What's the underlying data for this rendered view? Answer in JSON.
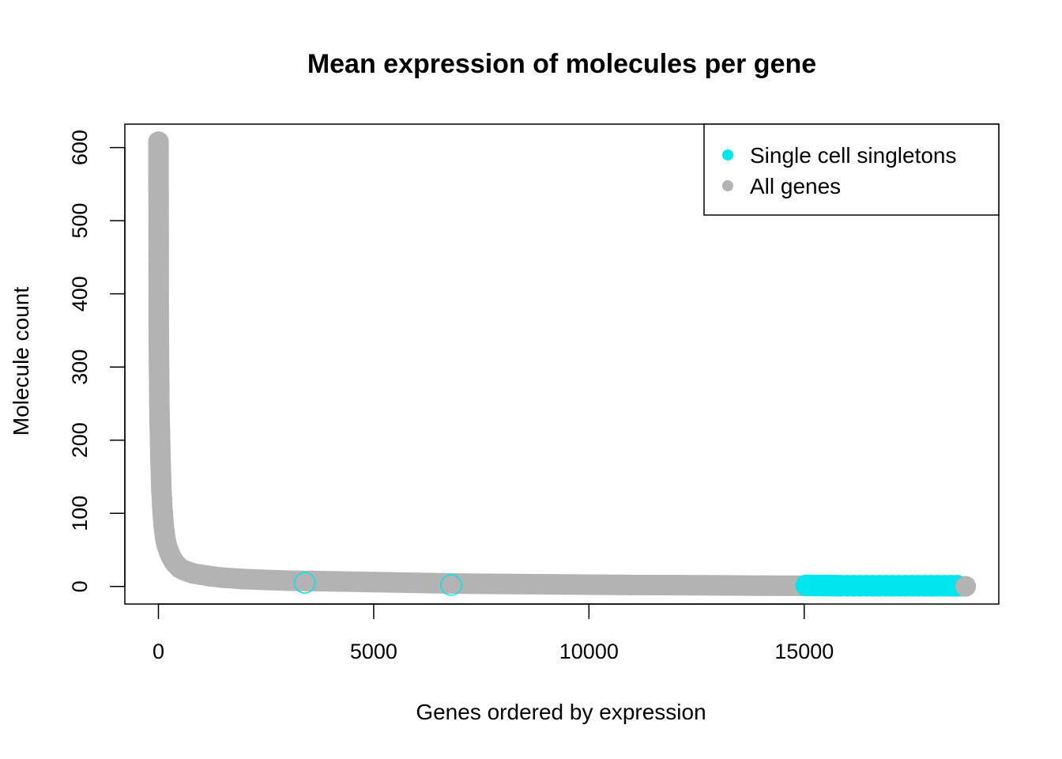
{
  "chart_data": {
    "type": "scatter",
    "title": "Mean expression of molecules per gene",
    "xlabel": "Genes ordered by expression",
    "ylabel": "Molecule count",
    "xlim": [
      -780,
      19520
    ],
    "ylim": [
      -24,
      632
    ],
    "xticks": [
      0,
      5000,
      10000,
      15000
    ],
    "yticks": [
      0,
      100,
      200,
      300,
      400,
      500,
      600
    ],
    "grid": false,
    "legend_position": "top-right",
    "legend": [
      {
        "label": "Single cell singletons",
        "color": "#00E5EE"
      },
      {
        "label": "All genes",
        "color": "#B3B3B3"
      }
    ],
    "series": [
      {
        "name": "All genes",
        "color": "#B3B3B3",
        "marker": "filled-circle",
        "x": [
          1,
          2,
          3,
          5,
          8,
          10,
          12,
          15,
          18,
          20,
          25,
          30,
          35,
          40,
          45,
          50,
          60,
          70,
          80,
          90,
          100,
          120,
          140,
          160,
          180,
          200,
          250,
          300,
          350,
          400,
          450,
          500,
          600,
          700,
          800,
          900,
          1000,
          1200,
          1500,
          2000,
          2500,
          3000,
          3500,
          4000,
          5000,
          6000,
          7000,
          8000,
          9000,
          10000,
          11000,
          12000,
          13000,
          14000,
          15000,
          16000,
          17000,
          18000,
          18750
        ],
        "y": [
          608,
          553,
          540,
          441,
          355,
          345,
          310,
          296,
          275,
          250,
          235,
          222,
          210,
          195,
          180,
          170,
          150,
          130,
          120,
          108,
          100,
          85,
          75,
          66,
          60,
          55,
          47,
          40,
          35,
          31,
          28,
          25,
          22,
          20,
          18,
          17,
          16,
          14,
          12,
          10,
          9,
          8,
          7.5,
          7,
          6,
          5,
          4,
          3.5,
          3,
          2.5,
          2,
          1.8,
          1.5,
          1.2,
          1,
          0.8,
          0.6,
          0.4,
          0.2
        ]
      },
      {
        "name": "Single cell singletons",
        "color": "#00E5EE",
        "marker": "circle",
        "x": [
          3400,
          6800,
          15050,
          15150,
          15250,
          15350,
          15450,
          15550,
          15650,
          15750,
          15850,
          16000,
          16150,
          16300,
          16450,
          16600,
          16750,
          16900,
          17050,
          17200,
          17350,
          17500,
          17650,
          17800,
          17950,
          18100,
          18250,
          18400,
          18550
        ],
        "y": [
          5,
          2,
          1.5,
          1.4,
          1.3,
          1.3,
          1.2,
          1.2,
          1.1,
          1.1,
          1,
          1,
          1,
          1,
          1,
          1,
          1,
          1,
          1,
          1,
          1,
          1,
          1,
          1,
          1,
          1,
          1,
          1,
          1
        ]
      }
    ]
  }
}
